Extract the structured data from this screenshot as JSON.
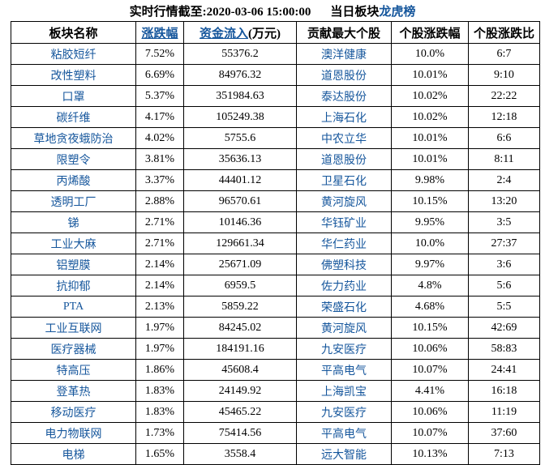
{
  "title": {
    "report_time_label": "实时行情截至:2020-03-06 15:00:00",
    "board_label": "当日板块",
    "link_label": "龙虎榜"
  },
  "table": {
    "headers": {
      "sector": "板块名称",
      "change": "涨跌幅",
      "inflow": "资金流入",
      "inflow_unit": "(万元)",
      "top_stock": "贡献最大个股",
      "stock_change": "个股涨跌幅",
      "stock_ratio": "个股涨跌比"
    },
    "rows": [
      {
        "sector": "粘胶短纤",
        "change": "7.52%",
        "inflow": "55376.2",
        "stock": "澳洋健康",
        "stock_change": "10.0%",
        "ratio": "6:7"
      },
      {
        "sector": "改性塑料",
        "change": "6.69%",
        "inflow": "84976.32",
        "stock": "道恩股份",
        "stock_change": "10.01%",
        "ratio": "9:10"
      },
      {
        "sector": "口罩",
        "change": "5.37%",
        "inflow": "351984.63",
        "stock": "泰达股份",
        "stock_change": "10.02%",
        "ratio": "22:22"
      },
      {
        "sector": "碳纤维",
        "change": "4.17%",
        "inflow": "105249.38",
        "stock": "上海石化",
        "stock_change": "10.02%",
        "ratio": "12:18"
      },
      {
        "sector": "草地贪夜蛾防治",
        "change": "4.02%",
        "inflow": "5755.6",
        "stock": "中农立华",
        "stock_change": "10.01%",
        "ratio": "6:6"
      },
      {
        "sector": "限塑令",
        "change": "3.81%",
        "inflow": "35636.13",
        "stock": "道恩股份",
        "stock_change": "10.01%",
        "ratio": "8:11"
      },
      {
        "sector": "丙烯酸",
        "change": "3.37%",
        "inflow": "44401.12",
        "stock": "卫星石化",
        "stock_change": "9.98%",
        "ratio": "2:4"
      },
      {
        "sector": "透明工厂",
        "change": "2.88%",
        "inflow": "96570.61",
        "stock": "黄河旋风",
        "stock_change": "10.15%",
        "ratio": "13:20"
      },
      {
        "sector": "锑",
        "change": "2.71%",
        "inflow": "10146.36",
        "stock": "华钰矿业",
        "stock_change": "9.95%",
        "ratio": "3:5"
      },
      {
        "sector": "工业大麻",
        "change": "2.71%",
        "inflow": "129661.34",
        "stock": "华仁药业",
        "stock_change": "10.0%",
        "ratio": "27:37"
      },
      {
        "sector": "铝塑膜",
        "change": "2.14%",
        "inflow": "25671.09",
        "stock": "佛塑科技",
        "stock_change": "9.97%",
        "ratio": "3:6"
      },
      {
        "sector": "抗抑郁",
        "change": "2.14%",
        "inflow": "6959.5",
        "stock": "佐力药业",
        "stock_change": "4.8%",
        "ratio": "5:6"
      },
      {
        "sector": "PTA",
        "change": "2.13%",
        "inflow": "5859.22",
        "stock": "荣盛石化",
        "stock_change": "4.68%",
        "ratio": "5:5"
      },
      {
        "sector": "工业互联网",
        "change": "1.97%",
        "inflow": "84245.02",
        "stock": "黄河旋风",
        "stock_change": "10.15%",
        "ratio": "42:69"
      },
      {
        "sector": "医疗器械",
        "change": "1.97%",
        "inflow": "184191.16",
        "stock": "九安医疗",
        "stock_change": "10.06%",
        "ratio": "58:83"
      },
      {
        "sector": "特高压",
        "change": "1.86%",
        "inflow": "45608.4",
        "stock": "平高电气",
        "stock_change": "10.07%",
        "ratio": "24:41"
      },
      {
        "sector": "登革热",
        "change": "1.83%",
        "inflow": "24149.92",
        "stock": "上海凯宝",
        "stock_change": "4.41%",
        "ratio": "16:18"
      },
      {
        "sector": "移动医疗",
        "change": "1.83%",
        "inflow": "45465.22",
        "stock": "九安医疗",
        "stock_change": "10.06%",
        "ratio": "11:19"
      },
      {
        "sector": "电力物联网",
        "change": "1.73%",
        "inflow": "75414.56",
        "stock": "平高电气",
        "stock_change": "10.07%",
        "ratio": "37:60"
      },
      {
        "sector": "电梯",
        "change": "1.65%",
        "inflow": "3558.4",
        "stock": "远大智能",
        "stock_change": "10.13%",
        "ratio": "7:13"
      }
    ]
  },
  "colors": {
    "link_blue": "#15569C",
    "text_black": "#000000",
    "border": "#000000",
    "background": "#FFFFFF"
  }
}
